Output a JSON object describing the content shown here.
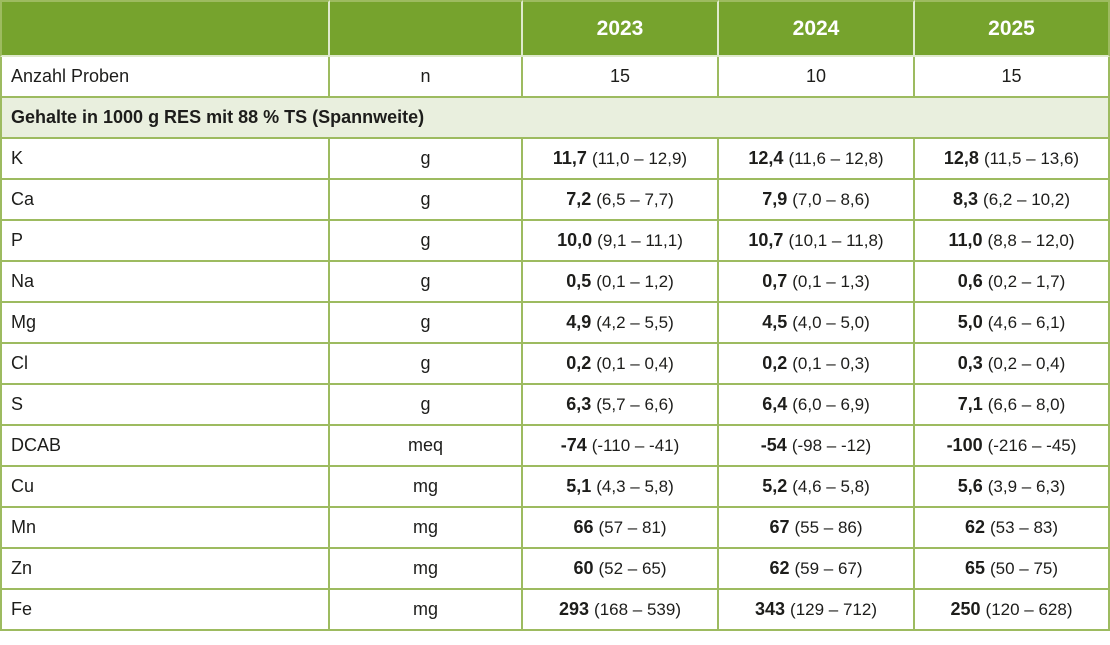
{
  "colors": {
    "header_green": "#76a32d",
    "border_green": "#9dbb60",
    "header_divider": "#dfe9cc",
    "section_bg": "#e9efde",
    "text": "#1d1d1b"
  },
  "table": {
    "year_headers": [
      "2023",
      "2024",
      "2025"
    ],
    "sample_row": {
      "label": "Anzahl Proben",
      "unit": "n",
      "values": [
        "15",
        "10",
        "15"
      ]
    },
    "section_title": "Gehalte in 1000 g RES mit 88 % TS (Spannweite)",
    "rows": [
      {
        "label": "K",
        "unit": "g",
        "values": [
          {
            "mean": "11,7",
            "range": "(11,0 – 12,9)"
          },
          {
            "mean": "12,4",
            "range": "(11,6 – 12,8)"
          },
          {
            "mean": "12,8",
            "range": "(11,5 – 13,6)"
          }
        ]
      },
      {
        "label": "Ca",
        "unit": "g",
        "values": [
          {
            "mean": "7,2",
            "range": "(6,5 – 7,7)"
          },
          {
            "mean": "7,9",
            "range": "(7,0 – 8,6)"
          },
          {
            "mean": "8,3",
            "range": "(6,2 – 10,2)"
          }
        ]
      },
      {
        "label": "P",
        "unit": "g",
        "values": [
          {
            "mean": "10,0",
            "range": "(9,1 – 11,1)"
          },
          {
            "mean": "10,7",
            "range": "(10,1 – 11,8)"
          },
          {
            "mean": "11,0",
            "range": "(8,8 – 12,0)"
          }
        ]
      },
      {
        "label": "Na",
        "unit": "g",
        "values": [
          {
            "mean": "0,5",
            "range": "(0,1 – 1,2)"
          },
          {
            "mean": "0,7",
            "range": "(0,1 – 1,3)"
          },
          {
            "mean": "0,6",
            "range": "(0,2 – 1,7)"
          }
        ]
      },
      {
        "label": "Mg",
        "unit": "g",
        "values": [
          {
            "mean": "4,9",
            "range": "(4,2 – 5,5)"
          },
          {
            "mean": "4,5",
            "range": "(4,0 – 5,0)"
          },
          {
            "mean": "5,0",
            "range": "(4,6 – 6,1)"
          }
        ]
      },
      {
        "label": "Cl",
        "unit": "g",
        "values": [
          {
            "mean": "0,2",
            "range": "(0,1 – 0,4)"
          },
          {
            "mean": "0,2",
            "range": "(0,1 – 0,3)"
          },
          {
            "mean": "0,3",
            "range": "(0,2 – 0,4)"
          }
        ]
      },
      {
        "label": "S",
        "unit": "g",
        "values": [
          {
            "mean": "6,3",
            "range": "(5,7 – 6,6)"
          },
          {
            "mean": "6,4",
            "range": "(6,0 – 6,9)"
          },
          {
            "mean": "7,1",
            "range": "(6,6 – 8,0)"
          }
        ]
      },
      {
        "label": "DCAB",
        "unit": "meq",
        "values": [
          {
            "mean": "-74",
            "range": "(-110 – -41)"
          },
          {
            "mean": "-54",
            "range": "(-98 – -12)"
          },
          {
            "mean": "-100",
            "range": "(-216 – -45)"
          }
        ]
      },
      {
        "label": "Cu",
        "unit": "mg",
        "values": [
          {
            "mean": "5,1",
            "range": "(4,3 – 5,8)"
          },
          {
            "mean": "5,2",
            "range": "(4,6 – 5,8)"
          },
          {
            "mean": "5,6",
            "range": "(3,9 – 6,3)"
          }
        ]
      },
      {
        "label": "Mn",
        "unit": "mg",
        "values": [
          {
            "mean": "66",
            "range": "(57 – 81)"
          },
          {
            "mean": "67",
            "range": "(55 – 86)"
          },
          {
            "mean": "62",
            "range": "(53 – 83)"
          }
        ]
      },
      {
        "label": "Zn",
        "unit": "mg",
        "values": [
          {
            "mean": "60",
            "range": "(52 – 65)"
          },
          {
            "mean": "62",
            "range": "(59 – 67)"
          },
          {
            "mean": "65",
            "range": "(50 – 75)"
          }
        ]
      },
      {
        "label": "Fe",
        "unit": "mg",
        "values": [
          {
            "mean": "293",
            "range": "(168 – 539)"
          },
          {
            "mean": "343",
            "range": "(129 – 712)"
          },
          {
            "mean": "250",
            "range": "(120 – 628)"
          }
        ]
      }
    ]
  }
}
